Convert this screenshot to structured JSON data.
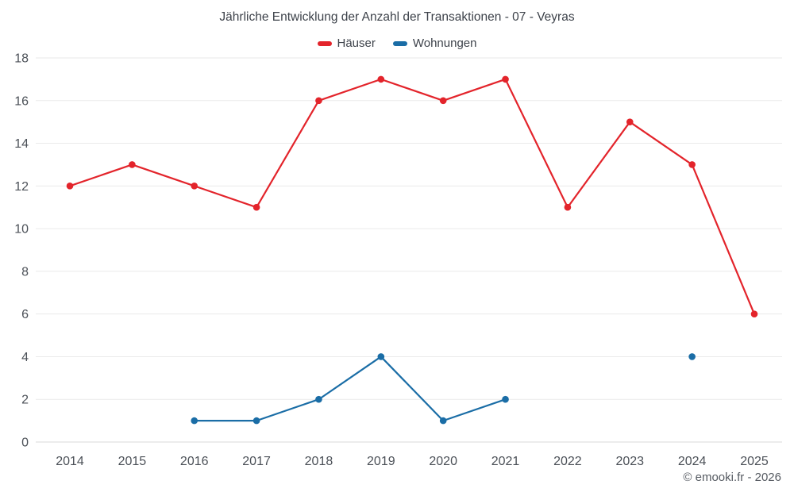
{
  "chart_data": {
    "type": "line",
    "title": "Jährliche Entwicklung der Anzahl der Transaktionen - 07 - Veyras",
    "categories": [
      "2014",
      "2015",
      "2016",
      "2017",
      "2018",
      "2019",
      "2020",
      "2021",
      "2022",
      "2023",
      "2024",
      "2025"
    ],
    "series": [
      {
        "name": "Häuser",
        "color": "#e3242b",
        "values": [
          12,
          13,
          12,
          11,
          16,
          17,
          16,
          17,
          11,
          15,
          13,
          6
        ]
      },
      {
        "name": "Wohnungen",
        "color": "#1a6da6",
        "values": [
          null,
          null,
          1,
          1,
          2,
          4,
          1,
          2,
          null,
          null,
          4,
          null
        ]
      }
    ],
    "ylim": [
      0,
      18
    ],
    "ytick_step": 2,
    "grid": "horizontal",
    "legend_position": "top"
  },
  "footer": {
    "copyright": "© emooki.fr - 2026"
  }
}
